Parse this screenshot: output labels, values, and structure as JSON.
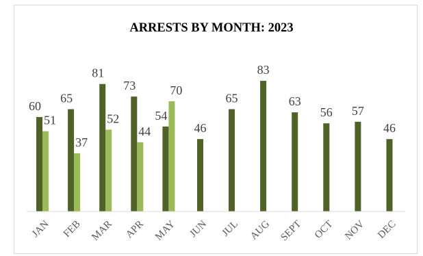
{
  "chart_data": {
    "type": "bar",
    "title": "ARRESTS BY MONTH: 2023",
    "categories": [
      "JAN",
      "FEB",
      "MAR",
      "APR",
      "MAY",
      "JUN",
      "JUL",
      "AUG",
      "SEPT",
      "OCT",
      "NOV",
      "DEC"
    ],
    "series": [
      {
        "values": [
          60,
          65,
          81,
          73,
          54,
          46,
          65,
          83,
          63,
          56,
          57,
          46
        ],
        "color": "#4f6228"
      },
      {
        "values": [
          51,
          37,
          52,
          44,
          70,
          null,
          null,
          null,
          null,
          null,
          null,
          null
        ],
        "color": "#9bbb59"
      }
    ],
    "ylim": [
      0,
      100
    ],
    "grid": false,
    "legend": "none"
  }
}
